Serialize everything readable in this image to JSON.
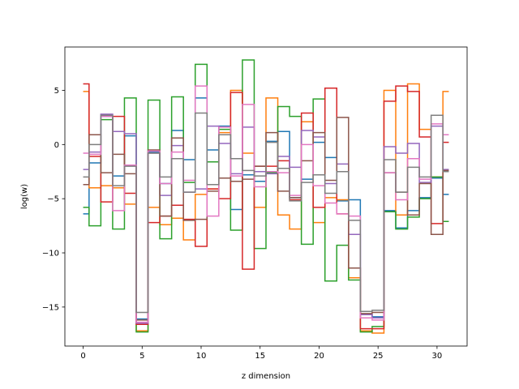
{
  "chart_data": {
    "type": "line",
    "drawstyle": "steps-mid",
    "xlabel": "z dimension",
    "ylabel": "log(w)",
    "xlim": [
      -1.55,
      32.55
    ],
    "ylim": [
      -18.6,
      9.0
    ],
    "xticks": [
      0,
      5,
      10,
      15,
      20,
      25,
      30
    ],
    "yticks": [
      -15,
      -10,
      -5,
      0,
      5
    ],
    "ytick_labels": [
      "−15",
      "−10",
      "−5",
      "0",
      "5"
    ],
    "grid": false,
    "legend": "none",
    "x": [
      0,
      1,
      2,
      3,
      4,
      5,
      6,
      7,
      8,
      9,
      10,
      11,
      12,
      13,
      14,
      15,
      16,
      17,
      18,
      19,
      20,
      21,
      22,
      23,
      24,
      25,
      26,
      27,
      28,
      29,
      30,
      31
    ],
    "series": [
      {
        "color": "#1f77b4",
        "values": [
          -6.4,
          -1.7,
          2.6,
          -2.9,
          0.8,
          -16.1,
          -0.7,
          -3.6,
          1.3,
          -1.4,
          4.3,
          -0.5,
          1.7,
          -6.0,
          -2.8,
          -3.4,
          0.3,
          1.2,
          -4.9,
          -3.2,
          0.2,
          -1.2,
          -5.2,
          -5.1,
          -15.7,
          -15.9,
          -6.1,
          -7.7,
          -6.1,
          -4.9,
          -3.1,
          -4.6
        ]
      },
      {
        "color": "#ff7f0e",
        "values": [
          4.9,
          -4.0,
          -3.8,
          -4.0,
          -5.5,
          -17.2,
          -5.8,
          -7.4,
          -6.8,
          -8.8,
          -4.6,
          -4.1,
          1.1,
          5.0,
          -0.8,
          -5.8,
          4.3,
          -6.5,
          -7.8,
          2.1,
          -7.2,
          -4.9,
          -5.1,
          -12.3,
          -17.2,
          -17.4,
          5.0,
          -6.5,
          5.6,
          1.4,
          -3.0,
          4.9
        ]
      },
      {
        "color": "#2ca02c",
        "values": [
          -5.8,
          -7.5,
          2.3,
          -7.8,
          4.3,
          -17.3,
          4.1,
          -8.7,
          4.4,
          -3.5,
          7.4,
          -1.6,
          1.4,
          -7.9,
          7.8,
          -9.6,
          -2.6,
          3.5,
          2.6,
          -9.2,
          4.2,
          -12.6,
          -9.3,
          -12.5,
          -17.3,
          -16.8,
          -6.2,
          -7.8,
          -6.7,
          -5.0,
          -3.0,
          -7.1
        ]
      },
      {
        "color": "#d62728",
        "values": [
          5.6,
          -1.1,
          -5.3,
          2.6,
          -4.5,
          -16.6,
          -7.2,
          -6.6,
          -5.6,
          -6.9,
          -9.4,
          -4.1,
          -5.0,
          4.8,
          -11.5,
          -2.0,
          -2.0,
          -1.5,
          -5.1,
          2.9,
          -5.8,
          5.2,
          -6.4,
          -11.4,
          -17.0,
          -17.0,
          4.0,
          5.4,
          4.9,
          0.7,
          -7.3,
          0.2
        ]
      },
      {
        "color": "#9467bd",
        "values": [
          -2.3,
          -0.7,
          2.8,
          1.2,
          1.0,
          -16.5,
          -0.8,
          -4.7,
          -0.1,
          -4.4,
          -4.1,
          1.7,
          0.1,
          -2.7,
          1.6,
          -2.5,
          -2.7,
          -1.1,
          -2.1,
          1.3,
          0.7,
          -3.6,
          -1.8,
          -8.3,
          -15.7,
          -16.0,
          -0.2,
          -0.8,
          0.1,
          -3.5,
          1.7,
          -2.3
        ]
      },
      {
        "color": "#8c564b",
        "values": [
          -3.7,
          0.9,
          -2.6,
          -0.9,
          -2.7,
          -16.2,
          -0.5,
          -6.6,
          0.6,
          -7.0,
          -6.9,
          -4.3,
          -3.1,
          -3.4,
          -3.2,
          -2.0,
          1.1,
          -4.3,
          -4.9,
          -1.5,
          1.1,
          -3.3,
          2.5,
          -11.4,
          -15.6,
          -15.5,
          -2.6,
          -4.4,
          -6.5,
          -3.6,
          -8.3,
          -2.4
        ]
      },
      {
        "color": "#e377c2",
        "values": [
          -0.8,
          -0.9,
          2.6,
          -6.1,
          -1.9,
          -16.4,
          -0.6,
          -3.6,
          -0.7,
          -3.3,
          5.4,
          -6.6,
          1.6,
          -2.9,
          3.7,
          -3.9,
          -2.5,
          -2.6,
          -4.7,
          0.0,
          -3.8,
          -5.4,
          -6.4,
          -6.6,
          -16.0,
          -16.2,
          -2.6,
          -5.1,
          -1.3,
          -3.2,
          1.9,
          0.9
        ]
      },
      {
        "color": "#7f7f7f",
        "values": [
          -3.0,
          0.0,
          2.7,
          -3.8,
          -2.0,
          -15.5,
          -0.8,
          -3.0,
          -1.3,
          -4.4,
          2.9,
          -3.7,
          0.9,
          -1.3,
          -2.4,
          -2.9,
          0.2,
          -2.2,
          -5.2,
          -3.5,
          -2.8,
          -4.5,
          -2.5,
          -7.0,
          -15.4,
          -15.3,
          -1.4,
          -4.4,
          -2.1,
          -3.0,
          2.7,
          -2.5
        ]
      }
    ]
  }
}
